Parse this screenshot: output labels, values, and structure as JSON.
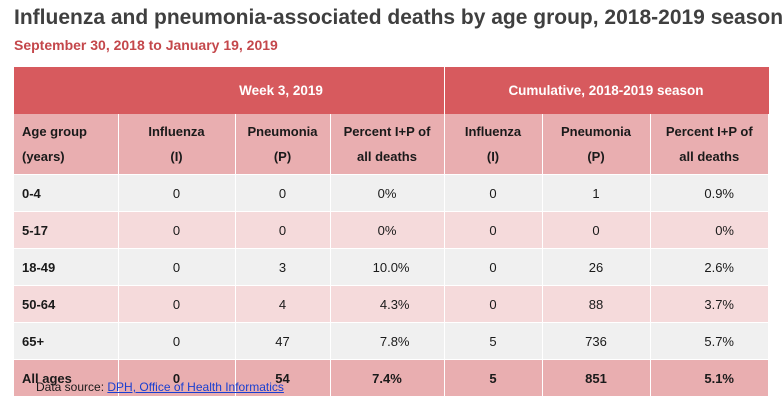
{
  "title": "Influenza and pneumonia-associated deaths by age group, 2018-2019 season",
  "subtitle": "September 30, 2018 to January 19, 2019",
  "table": {
    "group_headers": {
      "week": "Week 3, 2019",
      "cumulative": "Cumulative, 2018-2019 season"
    },
    "columns": {
      "age_line1": "Age group",
      "age_line2": "(years)",
      "influenza_line1": "Influenza",
      "influenza_line2": "(I)",
      "pneumonia_line1": "Pneumonia",
      "pneumonia_line2": "(P)",
      "percent_line1": "Percent I+P of",
      "percent_line2": "all deaths",
      "cum_influenza_line1": "Influenza",
      "cum_influenza_line2": "(I)",
      "cum_pneumonia_line1": "Pneumonia",
      "cum_pneumonia_line2": "(P)",
      "cum_percent_line1": "Percent I+P of",
      "cum_percent_line2": "all deaths"
    },
    "rows": [
      {
        "age": "0-4",
        "w_influenza": "0",
        "w_pneumonia": "0",
        "w_percent": "0%",
        "c_influenza": "0",
        "c_pneumonia": "1",
        "c_percent": "0.9%"
      },
      {
        "age": "5-17",
        "w_influenza": "0",
        "w_pneumonia": "0",
        "w_percent": "0%",
        "c_influenza": "0",
        "c_pneumonia": "0",
        "c_percent": "0%"
      },
      {
        "age": "18-49",
        "w_influenza": "0",
        "w_pneumonia": "3",
        "w_percent": "10.0%",
        "c_influenza": "0",
        "c_pneumonia": "26",
        "c_percent": "2.6%"
      },
      {
        "age": "50-64",
        "w_influenza": "0",
        "w_pneumonia": "4",
        "w_percent": "4.3%",
        "c_influenza": "0",
        "c_pneumonia": "88",
        "c_percent": "3.7%"
      },
      {
        "age": "65+",
        "w_influenza": "0",
        "w_pneumonia": "47",
        "w_percent": "7.8%",
        "c_influenza": "5",
        "c_pneumonia": "736",
        "c_percent": "5.7%"
      }
    ],
    "total": {
      "age": "All ages",
      "w_influenza": "0",
      "w_pneumonia": "54",
      "w_percent": "7.4%",
      "c_influenza": "5",
      "c_pneumonia": "851",
      "c_percent": "5.1%"
    }
  },
  "footer": {
    "prefix": "Data source: ",
    "link_text": "DPH, Office of Health Informatics"
  },
  "colors": {
    "header_red": "#d75a5e",
    "column_header_pink": "#e9aeb0",
    "row_light": "#f0f0f0",
    "row_pink": "#f5dadb",
    "subtitle_red": "#c4474b",
    "link_blue": "#1a3fd1"
  }
}
